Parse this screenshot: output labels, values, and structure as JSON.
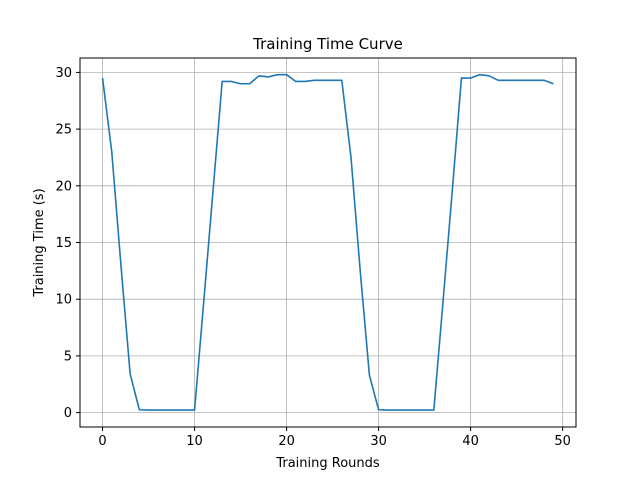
{
  "chart_data": {
    "type": "line",
    "title": "Training Time Curve",
    "xlabel": "Training Rounds",
    "ylabel": "Training Time (s)",
    "xlim": [
      -2.45,
      51.45
    ],
    "ylim": [
      -1.27,
      31.27
    ],
    "xticks": [
      0,
      10,
      20,
      30,
      40,
      50
    ],
    "yticks": [
      0,
      5,
      10,
      15,
      20,
      25,
      30
    ],
    "grid": true,
    "legend": "none",
    "series": [
      {
        "color": "#1f77b4",
        "x": [
          0,
          1,
          2,
          3,
          4,
          5,
          6,
          7,
          8,
          9,
          10,
          11,
          12,
          13,
          14,
          15,
          16,
          17,
          18,
          19,
          20,
          21,
          22,
          23,
          24,
          25,
          26,
          27,
          28,
          29,
          30,
          31,
          32,
          33,
          34,
          35,
          36,
          37,
          38,
          39,
          40,
          41,
          42,
          43,
          44,
          45,
          46,
          47,
          48,
          49
        ],
        "y": [
          29.5,
          23.0,
          13.0,
          3.4,
          0.25,
          0.22,
          0.22,
          0.22,
          0.22,
          0.22,
          0.22,
          9.8,
          19.5,
          29.2,
          29.2,
          29.0,
          29.0,
          29.7,
          29.6,
          29.8,
          29.8,
          29.2,
          29.2,
          29.3,
          29.3,
          29.3,
          29.3,
          22.5,
          12.5,
          3.3,
          0.25,
          0.22,
          0.22,
          0.22,
          0.22,
          0.22,
          0.22,
          9.8,
          19.5,
          29.5,
          29.5,
          29.8,
          29.7,
          29.3,
          29.3,
          29.3,
          29.3,
          29.3,
          29.3,
          29.0
        ]
      }
    ]
  }
}
